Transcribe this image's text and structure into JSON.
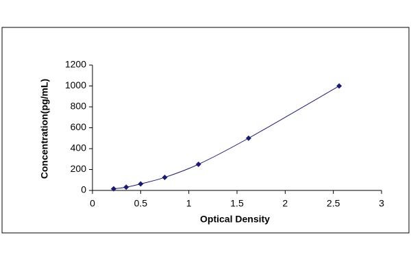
{
  "chart_data": {
    "type": "scatter",
    "x_label": "Optical Density",
    "y_label": "Concentration(pg/mL)",
    "x": [
      0.22,
      0.35,
      0.5,
      0.75,
      1.1,
      1.62,
      2.56
    ],
    "values": [
      15.6,
      31.2,
      62.5,
      125,
      250,
      500,
      1000
    ],
    "color": "#1a1a6e",
    "line": true,
    "xlim": [
      0,
      3
    ],
    "xticks": [
      0,
      0.5,
      1,
      1.5,
      2,
      2.5,
      3
    ],
    "ylim": [
      0,
      1200
    ],
    "yticks": [
      0,
      200,
      400,
      600,
      800,
      1000,
      1200
    ],
    "grid": false
  }
}
